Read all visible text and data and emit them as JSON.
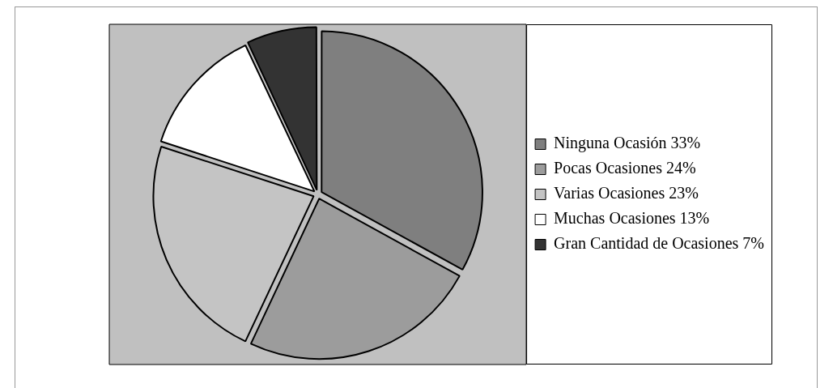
{
  "chart_data": {
    "type": "pie",
    "categories": [
      "Ninguna Ocasión 33%",
      "Pocas Ocasiones 24%",
      "Varias Ocasiones 23%",
      "Muchas Ocasiones 13%",
      "Gran Cantidad de Ocasiones 7%"
    ],
    "values": [
      33,
      24,
      23,
      13,
      7
    ],
    "colors": [
      "#7f7f7f",
      "#9c9c9c",
      "#c4c4c4",
      "#ffffff",
      "#333333"
    ],
    "legend": "right"
  }
}
